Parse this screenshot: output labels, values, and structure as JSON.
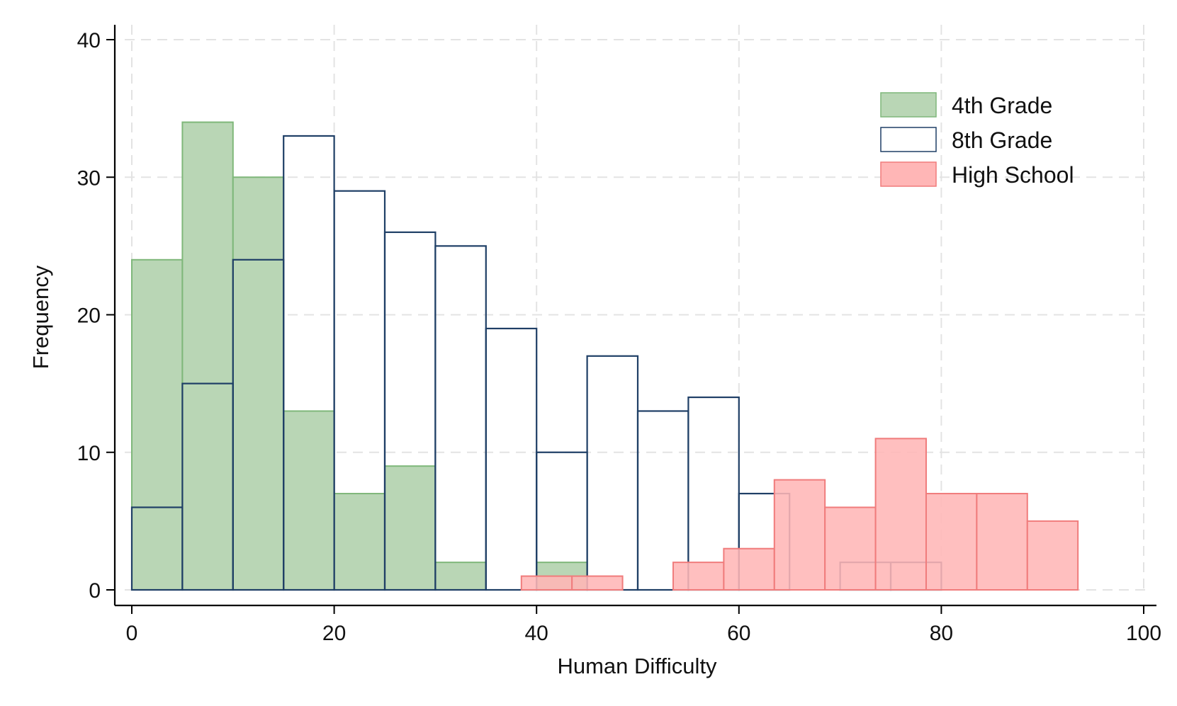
{
  "chart_data": {
    "type": "histogram",
    "title": "",
    "xlabel": "Human Difficulty",
    "ylabel": "Frequency",
    "xlim": [
      0,
      100
    ],
    "ylim": [
      0,
      40
    ],
    "xticks": [
      "0",
      "20",
      "40",
      "60",
      "80",
      "100"
    ],
    "yticks": [
      "0",
      "10",
      "20",
      "30",
      "40"
    ],
    "grid": true,
    "legend_position": "top-right",
    "series": [
      {
        "name": "4th Grade",
        "fill": "#b9d6b5",
        "stroke": "#7fb77a",
        "bin_width": 5,
        "bins": [
          {
            "start": 0,
            "count": 24
          },
          {
            "start": 5,
            "count": 34
          },
          {
            "start": 10,
            "count": 30
          },
          {
            "start": 15,
            "count": 13
          },
          {
            "start": 20,
            "count": 7
          },
          {
            "start": 25,
            "count": 9
          },
          {
            "start": 30,
            "count": 2
          },
          {
            "start": 40,
            "count": 2
          }
        ]
      },
      {
        "name": "8th Grade",
        "fill": "none",
        "stroke": "#1f3f66",
        "bin_width": 5,
        "bins": [
          {
            "start": 0,
            "count": 6
          },
          {
            "start": 5,
            "count": 15
          },
          {
            "start": 10,
            "count": 24
          },
          {
            "start": 15,
            "count": 33
          },
          {
            "start": 20,
            "count": 29
          },
          {
            "start": 25,
            "count": 26
          },
          {
            "start": 30,
            "count": 25
          },
          {
            "start": 35,
            "count": 19
          },
          {
            "start": 40,
            "count": 10
          },
          {
            "start": 45,
            "count": 17
          },
          {
            "start": 50,
            "count": 13
          },
          {
            "start": 55,
            "count": 14
          },
          {
            "start": 60,
            "count": 7
          },
          {
            "start": 70,
            "count": 2
          },
          {
            "start": 75,
            "count": 2
          }
        ]
      },
      {
        "name": "High School",
        "fill": "#ffb6b6",
        "stroke": "#f07c7c",
        "bin_width": 5,
        "bins": [
          {
            "start": 38.5,
            "count": 1
          },
          {
            "start": 43.5,
            "count": 1
          },
          {
            "start": 53.5,
            "count": 2
          },
          {
            "start": 58.5,
            "count": 3
          },
          {
            "start": 63.5,
            "count": 8
          },
          {
            "start": 68.5,
            "count": 6
          },
          {
            "start": 73.5,
            "count": 11
          },
          {
            "start": 78.5,
            "count": 7
          },
          {
            "start": 83.5,
            "count": 7
          },
          {
            "start": 88.5,
            "count": 5
          }
        ]
      }
    ]
  }
}
